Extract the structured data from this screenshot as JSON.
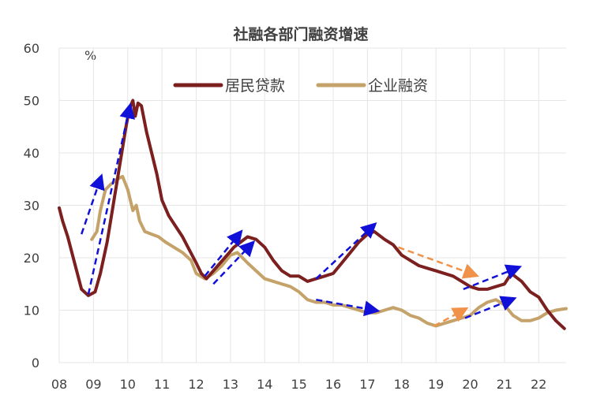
{
  "chart_data": {
    "type": "line",
    "title": "社融各部门融资增速",
    "y_unit": "%",
    "ylim": [
      0,
      60
    ],
    "yticks": [
      "0",
      "10",
      "20",
      "30",
      "40",
      "50",
      "60"
    ],
    "xlim": [
      2008,
      2022.8
    ],
    "xticks": [
      "08",
      "09",
      "10",
      "11",
      "12",
      "13",
      "14",
      "15",
      "16",
      "17",
      "18",
      "19",
      "20",
      "21",
      "22"
    ],
    "grid": true,
    "legend_position": "top-center",
    "series": [
      {
        "name": "居民贷款",
        "color": "#7b1f1f",
        "points": [
          [
            2008.0,
            29.5
          ],
          [
            2008.1,
            27
          ],
          [
            2008.25,
            24
          ],
          [
            2008.45,
            19
          ],
          [
            2008.65,
            14
          ],
          [
            2008.85,
            12.8
          ],
          [
            2009.05,
            13.5
          ],
          [
            2009.2,
            17
          ],
          [
            2009.4,
            23
          ],
          [
            2009.6,
            31
          ],
          [
            2009.8,
            39
          ],
          [
            2009.95,
            45
          ],
          [
            2010.05,
            48.5
          ],
          [
            2010.15,
            50
          ],
          [
            2010.22,
            47
          ],
          [
            2010.3,
            49.5
          ],
          [
            2010.4,
            49
          ],
          [
            2010.55,
            44
          ],
          [
            2010.7,
            40
          ],
          [
            2010.85,
            36
          ],
          [
            2011.0,
            31
          ],
          [
            2011.2,
            28
          ],
          [
            2011.4,
            26
          ],
          [
            2011.6,
            24
          ],
          [
            2011.8,
            21.5
          ],
          [
            2012.0,
            19
          ],
          [
            2012.15,
            17
          ],
          [
            2012.3,
            16
          ],
          [
            2012.5,
            17.5
          ],
          [
            2012.7,
            19
          ],
          [
            2012.9,
            20.5
          ],
          [
            2013.1,
            22
          ],
          [
            2013.3,
            23
          ],
          [
            2013.5,
            24
          ],
          [
            2013.75,
            23.5
          ],
          [
            2014.0,
            22
          ],
          [
            2014.25,
            19.5
          ],
          [
            2014.5,
            17.5
          ],
          [
            2014.75,
            16.5
          ],
          [
            2015.0,
            16.5
          ],
          [
            2015.25,
            15.5
          ],
          [
            2015.5,
            16
          ],
          [
            2015.75,
            16.5
          ],
          [
            2016.0,
            17
          ],
          [
            2016.25,
            19
          ],
          [
            2016.5,
            21
          ],
          [
            2016.75,
            23
          ],
          [
            2017.0,
            24.5
          ],
          [
            2017.2,
            25
          ],
          [
            2017.5,
            23.5
          ],
          [
            2017.75,
            22.5
          ],
          [
            2018.0,
            20.5
          ],
          [
            2018.25,
            19.5
          ],
          [
            2018.5,
            18.5
          ],
          [
            2018.75,
            18
          ],
          [
            2019.0,
            17.5
          ],
          [
            2019.25,
            17
          ],
          [
            2019.5,
            16.5
          ],
          [
            2019.75,
            15.5
          ],
          [
            2020.0,
            14.5
          ],
          [
            2020.25,
            14
          ],
          [
            2020.5,
            14
          ],
          [
            2020.75,
            14.5
          ],
          [
            2021.0,
            15
          ],
          [
            2021.2,
            17
          ],
          [
            2021.5,
            15.5
          ],
          [
            2021.75,
            13.5
          ],
          [
            2022.0,
            12.5
          ],
          [
            2022.25,
            10
          ],
          [
            2022.5,
            8
          ],
          [
            2022.75,
            6.5
          ]
        ]
      },
      {
        "name": "企业融资",
        "color": "#c4a269",
        "points": [
          [
            2008.95,
            23.5
          ],
          [
            2009.1,
            25
          ],
          [
            2009.2,
            29
          ],
          [
            2009.35,
            33
          ],
          [
            2009.5,
            34
          ],
          [
            2009.7,
            35
          ],
          [
            2009.85,
            35.5
          ],
          [
            2010.0,
            33
          ],
          [
            2010.15,
            29
          ],
          [
            2010.25,
            30
          ],
          [
            2010.35,
            27
          ],
          [
            2010.5,
            25
          ],
          [
            2010.7,
            24.5
          ],
          [
            2010.9,
            24
          ],
          [
            2011.1,
            23
          ],
          [
            2011.35,
            22
          ],
          [
            2011.6,
            21
          ],
          [
            2011.85,
            19.5
          ],
          [
            2012.0,
            17
          ],
          [
            2012.25,
            16
          ],
          [
            2012.5,
            17
          ],
          [
            2012.75,
            18.5
          ],
          [
            2013.0,
            20.5
          ],
          [
            2013.2,
            21
          ],
          [
            2013.5,
            19
          ],
          [
            2013.75,
            17.5
          ],
          [
            2014.0,
            16
          ],
          [
            2014.25,
            15.5
          ],
          [
            2014.5,
            15
          ],
          [
            2014.75,
            14.5
          ],
          [
            2015.0,
            13.5
          ],
          [
            2015.25,
            12
          ],
          [
            2015.5,
            11.5
          ],
          [
            2015.75,
            11.5
          ],
          [
            2016.0,
            11
          ],
          [
            2016.25,
            11
          ],
          [
            2016.5,
            10.5
          ],
          [
            2016.75,
            10
          ],
          [
            2017.0,
            9.5
          ],
          [
            2017.25,
            9.5
          ],
          [
            2017.5,
            10
          ],
          [
            2017.75,
            10.5
          ],
          [
            2018.0,
            10
          ],
          [
            2018.25,
            9
          ],
          [
            2018.5,
            8.5
          ],
          [
            2018.75,
            7.5
          ],
          [
            2019.0,
            7
          ],
          [
            2019.25,
            7.5
          ],
          [
            2019.5,
            8
          ],
          [
            2019.75,
            8.5
          ],
          [
            2020.0,
            9
          ],
          [
            2020.25,
            10.5
          ],
          [
            2020.5,
            11.5
          ],
          [
            2020.75,
            12
          ],
          [
            2021.0,
            11
          ],
          [
            2021.25,
            9
          ],
          [
            2021.5,
            8
          ],
          [
            2021.75,
            8
          ],
          [
            2022.0,
            8.5
          ],
          [
            2022.25,
            9.5
          ],
          [
            2022.5,
            10
          ],
          [
            2022.8,
            10.3
          ]
        ]
      }
    ],
    "annotations": [
      {
        "type": "arrow",
        "color": "#1010d8",
        "from": [
          2008.65,
          24.5
        ],
        "to": [
          2009.2,
          35
        ]
      },
      {
        "type": "arrow",
        "color": "#1010d8",
        "from": [
          2008.85,
          13
        ],
        "to": [
          2010.05,
          48.5
        ]
      },
      {
        "type": "arrow",
        "color": "#1010d8",
        "from": [
          2012.25,
          16.5
        ],
        "to": [
          2013.25,
          24.5
        ]
      },
      {
        "type": "arrow",
        "color": "#1010d8",
        "from": [
          2012.5,
          15
        ],
        "to": [
          2013.6,
          22.5
        ]
      },
      {
        "type": "arrow",
        "color": "#1010d8",
        "from": [
          2015.5,
          16
        ],
        "to": [
          2017.15,
          26
        ]
      },
      {
        "type": "arrow",
        "color": "#1010d8",
        "from": [
          2015.5,
          12
        ],
        "to": [
          2017.2,
          10
        ]
      },
      {
        "type": "arrow",
        "color": "#f0924a",
        "from": [
          2017.9,
          22
        ],
        "to": [
          2020.1,
          16.8
        ]
      },
      {
        "type": "arrow",
        "color": "#f0924a",
        "from": [
          2018.95,
          7
        ],
        "to": [
          2019.8,
          10
        ]
      },
      {
        "type": "arrow",
        "color": "#1010d8",
        "from": [
          2019.85,
          8.5
        ],
        "to": [
          2021.2,
          12
        ]
      },
      {
        "type": "arrow",
        "color": "#1010d8",
        "from": [
          2019.8,
          14
        ],
        "to": [
          2021.35,
          18
        ]
      }
    ]
  }
}
